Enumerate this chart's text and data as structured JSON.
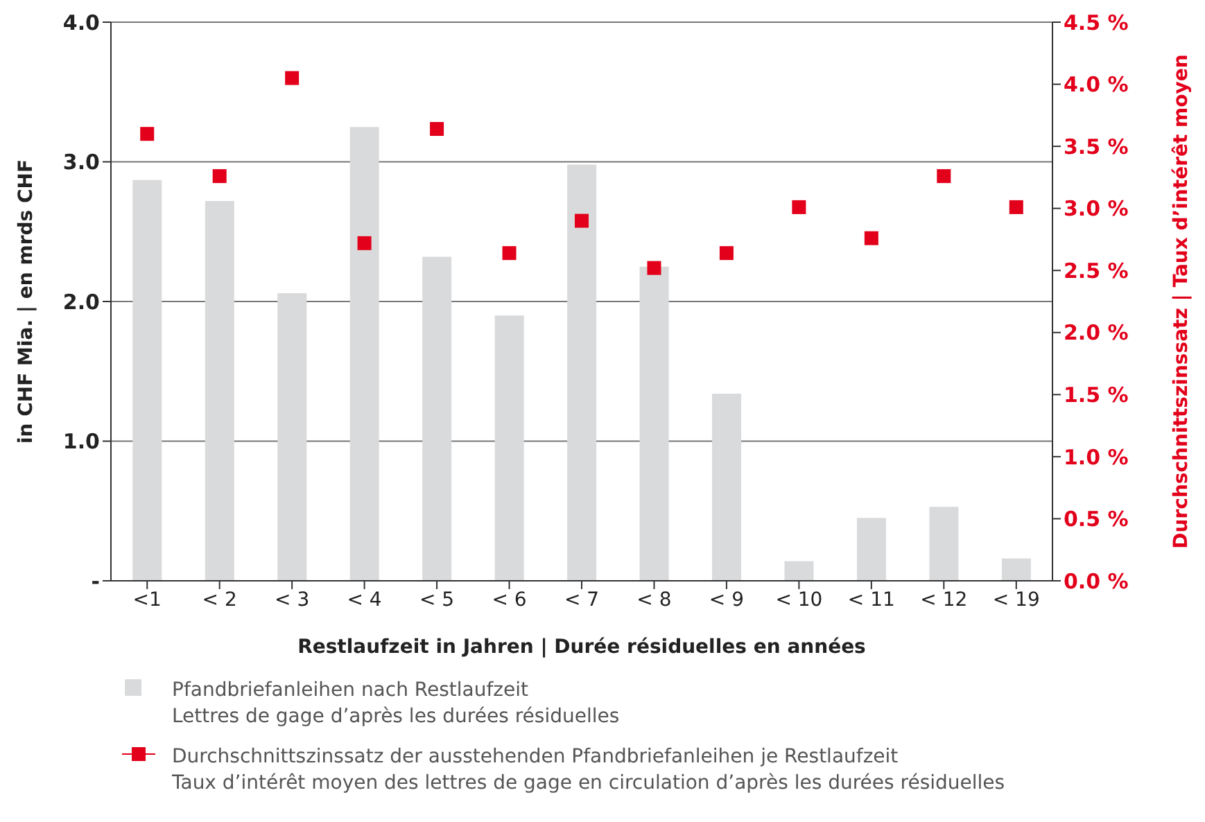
{
  "chart_data": {
    "type": "bar",
    "xlabel": "Restlaufzeit in Jahren | Durée résiduelles en années",
    "ylabel": "in CHF Mia. | en mrds CHF",
    "y2label": "Durchschnittszinssatz | Taux d’intérêt moyen",
    "categories": [
      "<1",
      "< 2",
      "< 3",
      "< 4",
      "< 5",
      "< 6",
      "< 7",
      "< 8",
      "< 9",
      "< 10",
      "< 11",
      "< 12",
      "< 19"
    ],
    "series": [
      {
        "name": "Pfandbriefanleihen nach Restlaufzeit\nLettres de gage d’après les durées résiduelles",
        "color": "#d9dadb",
        "values": [
          2.87,
          2.72,
          2.06,
          3.25,
          2.32,
          1.9,
          2.98,
          2.25,
          1.34,
          0.14,
          0.45,
          0.53,
          0.16
        ]
      },
      {
        "name": "Durchschnittszinssatz der ausstehenden Pfandbriefanleihen je Restlaufzeit\nTaux d’intérêt moyen des lettres de gage en circulation d’après les durées résiduelles",
        "type": "scatter",
        "axis": "y2",
        "color": "#e2001a",
        "values": [
          3.6,
          3.26,
          4.05,
          2.72,
          3.64,
          2.64,
          2.9,
          2.52,
          2.64,
          3.01,
          2.76,
          3.26,
          3.01
        ]
      }
    ],
    "ylim": [
      0,
      4
    ],
    "yticks": [
      {
        "value": 0,
        "label": "-"
      },
      {
        "value": 1,
        "label": "1.0"
      },
      {
        "value": 2,
        "label": "2.0"
      },
      {
        "value": 3,
        "label": "3.0"
      },
      {
        "value": 4,
        "label": "4.0"
      }
    ],
    "y2lim": [
      0,
      4.5
    ],
    "y2ticks": [
      {
        "value": 0,
        "label": "0.0 %"
      },
      {
        "value": 0.5,
        "label": "0.5 %"
      },
      {
        "value": 1,
        "label": "1.0 %"
      },
      {
        "value": 1.5,
        "label": "1.5 %"
      },
      {
        "value": 2,
        "label": "2.0 %"
      },
      {
        "value": 2.5,
        "label": "2.5 %"
      },
      {
        "value": 3,
        "label": "3.0 %"
      },
      {
        "value": 3.5,
        "label": "3.5 %"
      },
      {
        "value": 4,
        "label": "4.0 %"
      },
      {
        "value": 4.5,
        "label": "4.5 %"
      }
    ],
    "grid": "y",
    "legend": "bottom",
    "marker": "square"
  }
}
